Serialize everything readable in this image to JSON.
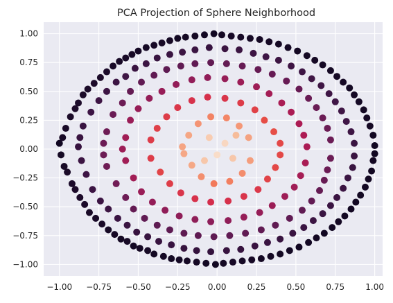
{
  "chart_data": {
    "type": "scatter",
    "title": "PCA Projection of Sphere Neighborhood",
    "xlabel": "",
    "ylabel": "",
    "xlim": [
      -1.1,
      1.05
    ],
    "ylim": [
      -1.1,
      1.1
    ],
    "grid": true,
    "background_color": "#eaeaf2",
    "colormap": "rocket",
    "color_meaning": "distance from center (dark = outer ring, light = center)",
    "x_ticks": [
      "−1.00",
      "−0.75",
      "−0.50",
      "−0.25",
      "0.00",
      "0.25",
      "0.50",
      "0.75",
      "1.00"
    ],
    "y_ticks": [
      "1.00",
      "0.75",
      "0.50",
      "0.25",
      "0.00",
      "−0.25",
      "−0.50",
      "−0.75",
      "−1.00"
    ],
    "x_tick_values": [
      -1.0,
      -0.75,
      -0.5,
      -0.25,
      0.0,
      0.25,
      0.5,
      0.75,
      1.0
    ],
    "y_tick_values": [
      1.0,
      0.75,
      0.5,
      0.25,
      0.0,
      -0.25,
      -0.5,
      -0.75,
      -1.0
    ],
    "points": [
      [
        -1.0,
        0.05
      ],
      [
        -0.99,
        -0.05
      ],
      [
        -0.98,
        0.1
      ],
      [
        -0.97,
        -0.15
      ],
      [
        -0.96,
        0.18
      ],
      [
        -0.95,
        -0.2
      ],
      [
        -0.93,
        0.28
      ],
      [
        -0.92,
        -0.3
      ],
      [
        -0.9,
        0.35
      ],
      [
        -0.9,
        -0.35
      ],
      [
        -0.88,
        0.4
      ],
      [
        -0.87,
        -0.42
      ],
      [
        -0.85,
        0.47
      ],
      [
        -0.84,
        -0.48
      ],
      [
        -0.82,
        0.52
      ],
      [
        -0.81,
        -0.55
      ],
      [
        -0.78,
        0.57
      ],
      [
        -0.77,
        -0.6
      ],
      [
        -0.74,
        0.62
      ],
      [
        -0.73,
        -0.65
      ],
      [
        -0.7,
        0.67
      ],
      [
        -0.69,
        -0.7
      ],
      [
        -0.66,
        0.72
      ],
      [
        -0.65,
        -0.74
      ],
      [
        -0.62,
        0.76
      ],
      [
        -0.61,
        -0.78
      ],
      [
        -0.58,
        0.79
      ],
      [
        -0.57,
        -0.8
      ],
      [
        -0.54,
        0.82
      ],
      [
        -0.53,
        -0.84
      ],
      [
        -0.5,
        0.85
      ],
      [
        -0.49,
        -0.86
      ],
      [
        -0.45,
        0.88
      ],
      [
        -0.44,
        -0.88
      ],
      [
        -0.4,
        0.9
      ],
      [
        -0.4,
        -0.91
      ],
      [
        -0.35,
        0.92
      ],
      [
        -0.34,
        -0.93
      ],
      [
        -0.3,
        0.94
      ],
      [
        -0.29,
        -0.95
      ],
      [
        -0.25,
        0.96
      ],
      [
        -0.24,
        -0.96
      ],
      [
        -0.2,
        0.97
      ],
      [
        -0.19,
        -0.97
      ],
      [
        -0.14,
        0.98
      ],
      [
        -0.13,
        -0.98
      ],
      [
        -0.08,
        0.99
      ],
      [
        -0.07,
        -0.99
      ],
      [
        -0.02,
        1.0
      ],
      [
        -0.01,
        -1.0
      ],
      [
        0.03,
        0.99
      ],
      [
        0.04,
        -0.99
      ],
      [
        0.09,
        0.98
      ],
      [
        0.1,
        -0.98
      ],
      [
        0.15,
        0.97
      ],
      [
        0.16,
        -0.97
      ],
      [
        0.21,
        0.96
      ],
      [
        0.22,
        -0.96
      ],
      [
        0.27,
        0.95
      ],
      [
        0.28,
        -0.95
      ],
      [
        0.33,
        0.93
      ],
      [
        0.34,
        -0.93
      ],
      [
        0.39,
        0.91
      ],
      [
        0.4,
        -0.91
      ],
      [
        0.45,
        0.88
      ],
      [
        0.46,
        -0.88
      ],
      [
        0.51,
        0.85
      ],
      [
        0.52,
        -0.85
      ],
      [
        0.57,
        0.81
      ],
      [
        0.58,
        -0.81
      ],
      [
        0.62,
        0.77
      ],
      [
        0.63,
        -0.77
      ],
      [
        0.67,
        0.73
      ],
      [
        0.68,
        -0.73
      ],
      [
        0.72,
        0.68
      ],
      [
        0.73,
        -0.68
      ],
      [
        0.76,
        0.63
      ],
      [
        0.77,
        -0.63
      ],
      [
        0.8,
        0.58
      ],
      [
        0.81,
        -0.58
      ],
      [
        0.84,
        0.53
      ],
      [
        0.85,
        -0.52
      ],
      [
        0.87,
        0.47
      ],
      [
        0.88,
        -0.46
      ],
      [
        0.9,
        0.41
      ],
      [
        0.91,
        -0.4
      ],
      [
        0.93,
        0.34
      ],
      [
        0.94,
        -0.33
      ],
      [
        0.95,
        0.27
      ],
      [
        0.96,
        -0.26
      ],
      [
        0.97,
        0.2
      ],
      [
        0.98,
        -0.19
      ],
      [
        0.99,
        0.12
      ],
      [
        0.99,
        -0.1
      ],
      [
        1.0,
        0.03
      ],
      [
        1.0,
        -0.04
      ],
      [
        -0.85,
        0.2
      ],
      [
        -0.83,
        -0.22
      ],
      [
        -0.8,
        0.32
      ],
      [
        -0.79,
        -0.35
      ],
      [
        -0.75,
        0.42
      ],
      [
        -0.74,
        -0.45
      ],
      [
        -0.7,
        0.5
      ],
      [
        -0.69,
        -0.52
      ],
      [
        -0.64,
        0.58
      ],
      [
        -0.63,
        -0.6
      ],
      [
        -0.58,
        0.63
      ],
      [
        -0.57,
        -0.66
      ],
      [
        -0.52,
        0.7
      ],
      [
        -0.51,
        -0.72
      ],
      [
        -0.45,
        0.74
      ],
      [
        -0.44,
        -0.76
      ],
      [
        -0.38,
        0.79
      ],
      [
        -0.37,
        -0.8
      ],
      [
        -0.3,
        0.82
      ],
      [
        -0.29,
        -0.83
      ],
      [
        -0.22,
        0.84
      ],
      [
        -0.21,
        -0.86
      ],
      [
        -0.14,
        0.86
      ],
      [
        -0.13,
        -0.88
      ],
      [
        -0.05,
        0.88
      ],
      [
        -0.04,
        -0.89
      ],
      [
        0.05,
        0.87
      ],
      [
        0.06,
        -0.88
      ],
      [
        0.14,
        0.86
      ],
      [
        0.15,
        -0.87
      ],
      [
        0.23,
        0.83
      ],
      [
        0.24,
        -0.84
      ],
      [
        0.31,
        0.8
      ],
      [
        0.32,
        -0.81
      ],
      [
        0.39,
        0.77
      ],
      [
        0.4,
        -0.78
      ],
      [
        0.47,
        0.72
      ],
      [
        0.48,
        -0.73
      ],
      [
        0.54,
        0.67
      ],
      [
        0.55,
        -0.68
      ],
      [
        0.6,
        0.61
      ],
      [
        0.61,
        -0.62
      ],
      [
        0.66,
        0.55
      ],
      [
        0.67,
        -0.56
      ],
      [
        0.71,
        0.48
      ],
      [
        0.72,
        -0.49
      ],
      [
        0.75,
        0.41
      ],
      [
        0.76,
        -0.42
      ],
      [
        0.79,
        0.33
      ],
      [
        0.8,
        -0.34
      ],
      [
        0.82,
        0.24
      ],
      [
        0.83,
        -0.25
      ],
      [
        0.85,
        0.15
      ],
      [
        0.86,
        -0.16
      ],
      [
        0.87,
        0.05
      ],
      [
        0.87,
        -0.06
      ],
      [
        -0.88,
        0.02
      ],
      [
        -0.87,
        0.1
      ],
      [
        -0.86,
        -0.1
      ],
      [
        -0.66,
        0.3
      ],
      [
        -0.64,
        -0.3
      ],
      [
        -0.6,
        0.4
      ],
      [
        -0.58,
        -0.42
      ],
      [
        -0.55,
        0.5
      ],
      [
        -0.53,
        -0.52
      ],
      [
        -0.48,
        0.58
      ],
      [
        -0.46,
        -0.6
      ],
      [
        -0.4,
        0.64
      ],
      [
        -0.38,
        -0.66
      ],
      [
        -0.32,
        0.69
      ],
      [
        -0.3,
        -0.7
      ],
      [
        -0.23,
        0.72
      ],
      [
        -0.21,
        -0.73
      ],
      [
        -0.14,
        0.74
      ],
      [
        -0.12,
        -0.75
      ],
      [
        -0.04,
        0.75
      ],
      [
        -0.02,
        -0.76
      ],
      [
        0.06,
        0.74
      ],
      [
        0.08,
        -0.75
      ],
      [
        0.16,
        0.72
      ],
      [
        0.18,
        -0.73
      ],
      [
        0.26,
        0.69
      ],
      [
        0.28,
        -0.7
      ],
      [
        0.35,
        0.65
      ],
      [
        0.37,
        -0.66
      ],
      [
        0.44,
        0.59
      ],
      [
        0.46,
        -0.6
      ],
      [
        0.52,
        0.52
      ],
      [
        0.54,
        -0.53
      ],
      [
        0.58,
        0.44
      ],
      [
        0.6,
        -0.45
      ],
      [
        0.63,
        0.36
      ],
      [
        0.65,
        -0.36
      ],
      [
        0.67,
        0.27
      ],
      [
        0.68,
        -0.27
      ],
      [
        0.7,
        0.18
      ],
      [
        0.7,
        -0.18
      ],
      [
        0.72,
        0.08
      ],
      [
        0.72,
        -0.08
      ],
      [
        -0.7,
        0.15
      ],
      [
        -0.7,
        -0.15
      ],
      [
        -0.72,
        0.05
      ],
      [
        -0.72,
        -0.05
      ],
      [
        -0.55,
        0.25
      ],
      [
        -0.53,
        -0.25
      ],
      [
        -0.5,
        0.35
      ],
      [
        -0.48,
        -0.37
      ],
      [
        -0.43,
        0.44
      ],
      [
        -0.41,
        -0.46
      ],
      [
        -0.35,
        0.5
      ],
      [
        -0.33,
        -0.53
      ],
      [
        -0.26,
        0.56
      ],
      [
        -0.24,
        -0.58
      ],
      [
        -0.16,
        0.6
      ],
      [
        -0.14,
        -0.61
      ],
      [
        -0.06,
        0.62
      ],
      [
        -0.04,
        -0.63
      ],
      [
        0.05,
        0.61
      ],
      [
        0.07,
        -0.62
      ],
      [
        0.15,
        0.58
      ],
      [
        0.17,
        -0.59
      ],
      [
        0.25,
        0.54
      ],
      [
        0.27,
        -0.55
      ],
      [
        0.33,
        0.48
      ],
      [
        0.35,
        -0.49
      ],
      [
        0.41,
        0.4
      ],
      [
        0.43,
        -0.41
      ],
      [
        0.47,
        0.32
      ],
      [
        0.49,
        -0.33
      ],
      [
        0.52,
        0.22
      ],
      [
        0.53,
        -0.23
      ],
      [
        0.55,
        0.12
      ],
      [
        0.56,
        -0.12
      ],
      [
        0.57,
        0.02
      ],
      [
        -0.58,
        0.1
      ],
      [
        -0.58,
        -0.1
      ],
      [
        -0.6,
        0.0
      ],
      [
        -0.38,
        0.18
      ],
      [
        -0.36,
        -0.2
      ],
      [
        -0.32,
        0.28
      ],
      [
        -0.3,
        -0.3
      ],
      [
        -0.25,
        0.36
      ],
      [
        -0.23,
        -0.38
      ],
      [
        -0.16,
        0.42
      ],
      [
        -0.14,
        -0.43
      ],
      [
        -0.06,
        0.45
      ],
      [
        -0.04,
        -0.46
      ],
      [
        0.05,
        0.44
      ],
      [
        0.07,
        -0.45
      ],
      [
        0.15,
        0.4
      ],
      [
        0.17,
        -0.41
      ],
      [
        0.24,
        0.34
      ],
      [
        0.26,
        -0.35
      ],
      [
        0.3,
        0.25
      ],
      [
        0.32,
        -0.26
      ],
      [
        0.36,
        0.15
      ],
      [
        0.37,
        -0.16
      ],
      [
        0.4,
        0.05
      ],
      [
        0.4,
        -0.05
      ],
      [
        -0.42,
        0.08
      ],
      [
        -0.42,
        -0.08
      ],
      [
        -0.18,
        0.12
      ],
      [
        -0.16,
        -0.14
      ],
      [
        -0.12,
        0.22
      ],
      [
        -0.1,
        -0.24
      ],
      [
        -0.04,
        0.28
      ],
      [
        -0.02,
        -0.3
      ],
      [
        0.06,
        0.27
      ],
      [
        0.08,
        -0.28
      ],
      [
        0.14,
        0.2
      ],
      [
        0.16,
        -0.21
      ],
      [
        0.2,
        0.1
      ],
      [
        0.21,
        -0.1
      ],
      [
        -0.22,
        0.02
      ],
      [
        -0.21,
        -0.04
      ],
      [
        -0.05,
        0.1
      ],
      [
        0.05,
        0.05
      ],
      [
        0.0,
        -0.05
      ],
      [
        -0.08,
        -0.1
      ],
      [
        0.1,
        -0.08
      ],
      [
        0.12,
        0.12
      ]
    ]
  }
}
